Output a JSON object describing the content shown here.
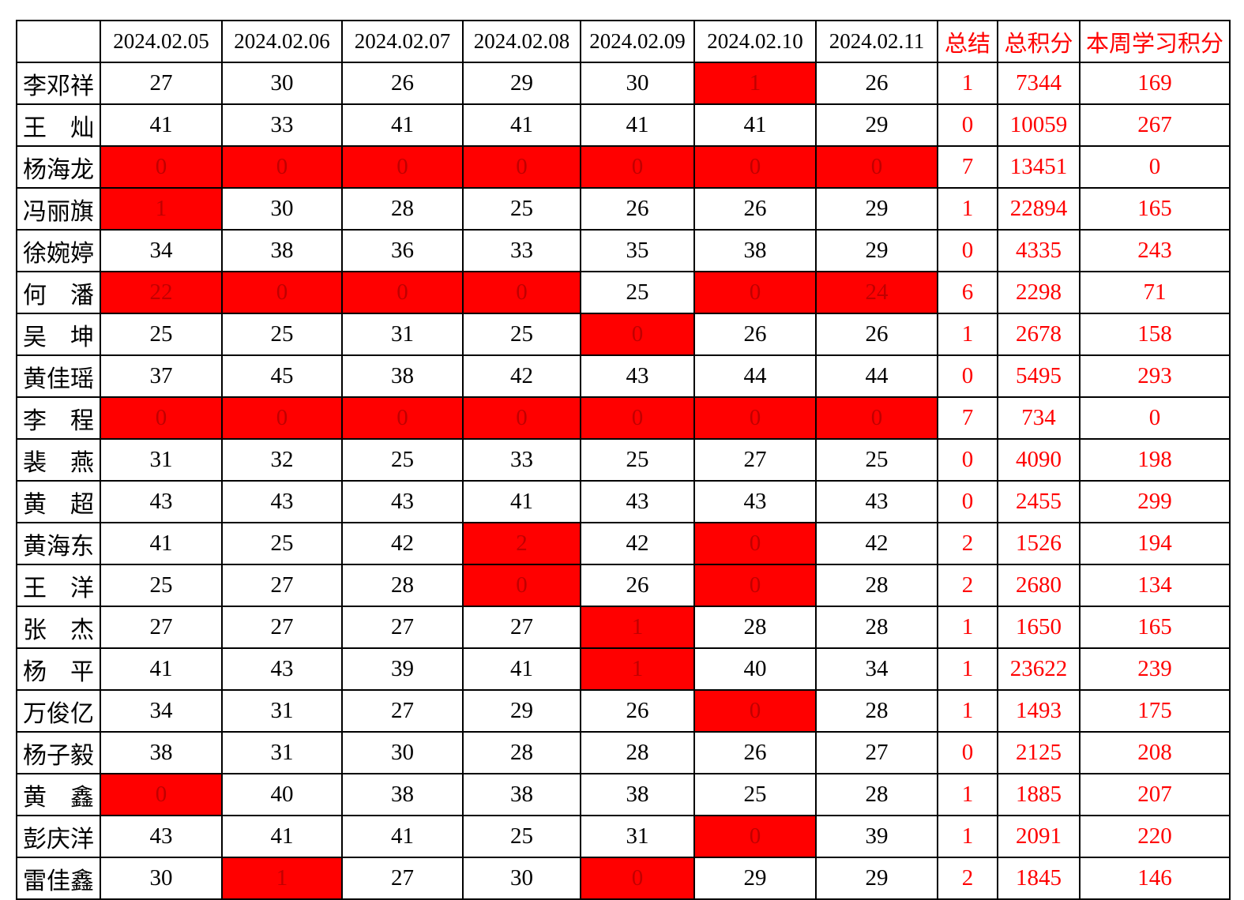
{
  "colors": {
    "cell_highlight": "#FF0000",
    "highlight_cell_text": "#C00000",
    "summary_text": "#FF0000",
    "grid_line": "#000000",
    "body_text": "#000000",
    "background": "#FFFFFF"
  },
  "chart_data": {
    "type": "table",
    "title": "",
    "columns": [
      "",
      "2024.02.05",
      "2024.02.06",
      "2024.02.07",
      "2024.02.08",
      "2024.02.09",
      "2024.02.10",
      "2024.02.11",
      "总结",
      "总积分",
      "本周学习积分"
    ],
    "highlight_note": "red_days lists 0-based indices of the 7 daily-score cells rendered with red fill and dark-red digits; summary/total/weekly values render in bright red text",
    "rows": [
      {
        "name": "李邓祥",
        "daily": [
          27,
          30,
          26,
          29,
          30,
          1,
          26
        ],
        "red_days": [
          5
        ],
        "summary": 1,
        "total": 7344,
        "weekly": 169
      },
      {
        "name": "王　灿",
        "daily": [
          41,
          33,
          41,
          41,
          41,
          41,
          29
        ],
        "red_days": [],
        "summary": 0,
        "total": 10059,
        "weekly": 267
      },
      {
        "name": "杨海龙",
        "daily": [
          0,
          0,
          0,
          0,
          0,
          0,
          0
        ],
        "red_days": [
          0,
          1,
          2,
          3,
          4,
          5,
          6
        ],
        "summary": 7,
        "total": 13451,
        "weekly": 0
      },
      {
        "name": "冯丽旗",
        "daily": [
          1,
          30,
          28,
          25,
          26,
          26,
          29
        ],
        "red_days": [
          0
        ],
        "summary": 1,
        "total": 22894,
        "weekly": 165
      },
      {
        "name": "徐婉婷",
        "daily": [
          34,
          38,
          36,
          33,
          35,
          38,
          29
        ],
        "red_days": [],
        "summary": 0,
        "total": 4335,
        "weekly": 243
      },
      {
        "name": "何　潘",
        "daily": [
          22,
          0,
          0,
          0,
          25,
          0,
          24
        ],
        "red_days": [
          0,
          1,
          2,
          3,
          5,
          6
        ],
        "summary": 6,
        "total": 2298,
        "weekly": 71
      },
      {
        "name": "吴　坤",
        "daily": [
          25,
          25,
          31,
          25,
          0,
          26,
          26
        ],
        "red_days": [
          4
        ],
        "summary": 1,
        "total": 2678,
        "weekly": 158
      },
      {
        "name": "黄佳瑶",
        "daily": [
          37,
          45,
          38,
          42,
          43,
          44,
          44
        ],
        "red_days": [],
        "summary": 0,
        "total": 5495,
        "weekly": 293
      },
      {
        "name": "李　程",
        "daily": [
          0,
          0,
          0,
          0,
          0,
          0,
          0
        ],
        "red_days": [
          0,
          1,
          2,
          3,
          4,
          5,
          6
        ],
        "summary": 7,
        "total": 734,
        "weekly": 0
      },
      {
        "name": "裴　燕",
        "daily": [
          31,
          32,
          25,
          33,
          25,
          27,
          25
        ],
        "red_days": [],
        "summary": 0,
        "total": 4090,
        "weekly": 198
      },
      {
        "name": "黄　超",
        "daily": [
          43,
          43,
          43,
          41,
          43,
          43,
          43
        ],
        "red_days": [],
        "summary": 0,
        "total": 2455,
        "weekly": 299
      },
      {
        "name": "黄海东",
        "daily": [
          41,
          25,
          42,
          2,
          42,
          0,
          42
        ],
        "red_days": [
          3,
          5
        ],
        "summary": 2,
        "total": 1526,
        "weekly": 194
      },
      {
        "name": "王　洋",
        "daily": [
          25,
          27,
          28,
          0,
          26,
          0,
          28
        ],
        "red_days": [
          3,
          5
        ],
        "summary": 2,
        "total": 2680,
        "weekly": 134
      },
      {
        "name": "张　杰",
        "daily": [
          27,
          27,
          27,
          27,
          1,
          28,
          28
        ],
        "red_days": [
          4
        ],
        "summary": 1,
        "total": 1650,
        "weekly": 165
      },
      {
        "name": "杨　平",
        "daily": [
          41,
          43,
          39,
          41,
          1,
          40,
          34
        ],
        "red_days": [
          4
        ],
        "summary": 1,
        "total": 23622,
        "weekly": 239
      },
      {
        "name": "万俊亿",
        "daily": [
          34,
          31,
          27,
          29,
          26,
          0,
          28
        ],
        "red_days": [
          5
        ],
        "summary": 1,
        "total": 1493,
        "weekly": 175
      },
      {
        "name": "杨子毅",
        "daily": [
          38,
          31,
          30,
          28,
          28,
          26,
          27
        ],
        "red_days": [],
        "summary": 0,
        "total": 2125,
        "weekly": 208
      },
      {
        "name": "黄　鑫",
        "daily": [
          0,
          40,
          38,
          38,
          38,
          25,
          28
        ],
        "red_days": [
          0
        ],
        "summary": 1,
        "total": 1885,
        "weekly": 207
      },
      {
        "name": "彭庆洋",
        "daily": [
          43,
          41,
          41,
          25,
          31,
          0,
          39
        ],
        "red_days": [
          5
        ],
        "summary": 1,
        "total": 2091,
        "weekly": 220
      },
      {
        "name": "雷佳鑫",
        "daily": [
          30,
          1,
          27,
          30,
          0,
          29,
          29
        ],
        "red_days": [
          1,
          4
        ],
        "summary": 2,
        "total": 1845,
        "weekly": 146
      }
    ]
  }
}
